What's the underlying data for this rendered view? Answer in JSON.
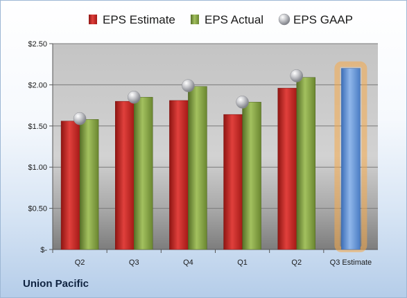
{
  "chart_data": {
    "type": "bar",
    "categories": [
      "Q2",
      "Q3",
      "Q4",
      "Q1",
      "Q2",
      "Q3 Estimate"
    ],
    "series": [
      {
        "name": "EPS Estimate",
        "values": [
          1.56,
          1.8,
          1.81,
          1.64,
          1.96,
          null
        ],
        "color": "#c0201e"
      },
      {
        "name": "EPS Actual",
        "values": [
          1.58,
          1.85,
          1.98,
          1.79,
          2.09,
          null
        ],
        "color": "#7a9a3c"
      },
      {
        "name": "EPS GAAP",
        "values": [
          1.59,
          1.85,
          1.99,
          1.79,
          2.11,
          null
        ],
        "color": "#a8aab0"
      }
    ],
    "estimate": {
      "category": "Q3 Estimate",
      "value": 2.2,
      "color": "#5b8fd6",
      "glow": "#f5a94b"
    },
    "ylim": [
      0,
      2.5
    ],
    "yticks": [
      {
        "value": 0,
        "label": "$-"
      },
      {
        "value": 0.5,
        "label": "$0.50"
      },
      {
        "value": 1.0,
        "label": "$1.00"
      },
      {
        "value": 1.5,
        "label": "$1.50"
      },
      {
        "value": 2.0,
        "label": "$2.00"
      },
      {
        "value": 2.5,
        "label": "$2.50"
      }
    ],
    "legend_position": "top",
    "grid": true
  },
  "company": "Union Pacific"
}
